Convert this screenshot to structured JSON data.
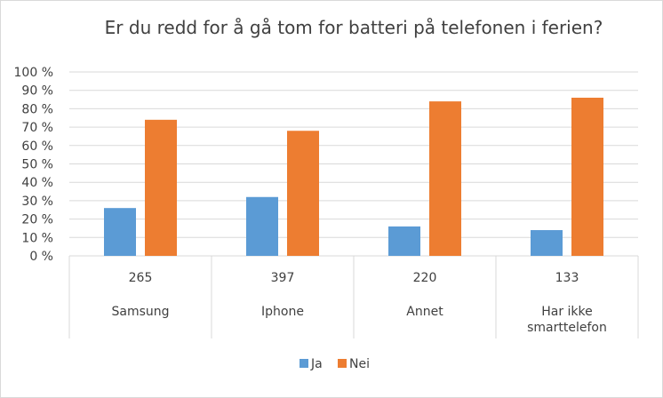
{
  "chart_data": {
    "type": "bar",
    "title": "Er du redd for å gå tom for batteri på telefonen i ferien?",
    "categories": [
      {
        "count": "265",
        "label": [
          "Samsung"
        ]
      },
      {
        "count": "397",
        "label": [
          "Iphone"
        ]
      },
      {
        "count": "220",
        "label": [
          "Annet"
        ]
      },
      {
        "count": "133",
        "label": [
          "Har ikke",
          "smarttelefon"
        ]
      }
    ],
    "series": [
      {
        "name": "Ja",
        "color": "#5b9bd5",
        "values": [
          26,
          32,
          16,
          14
        ]
      },
      {
        "name": "Nei",
        "color": "#ed7d31",
        "values": [
          74,
          68,
          84,
          86
        ]
      }
    ],
    "ylim": [
      0,
      100
    ],
    "yticks": [
      "0 %",
      "10 %",
      "20 %",
      "30 %",
      "40 %",
      "50 %",
      "60 %",
      "70 %",
      "80 %",
      "90 %",
      "100 %"
    ],
    "grid": true,
    "legend_position": "bottom"
  }
}
